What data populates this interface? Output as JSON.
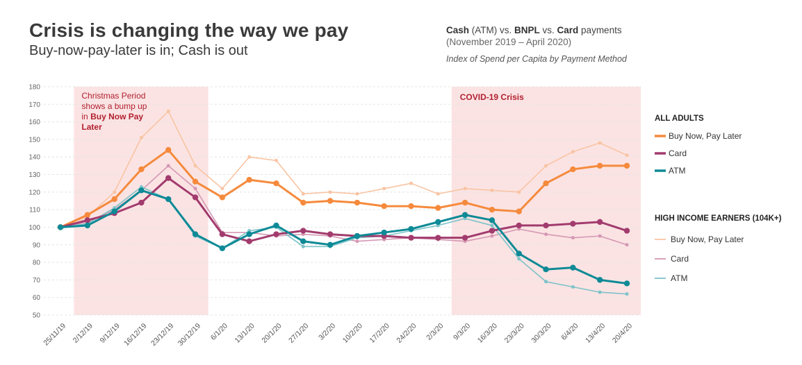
{
  "header": {
    "title": "Crisis is changing the way we pay",
    "subtitle": "Buy-now-pay-later is in; Cash is out",
    "methods": {
      "cash": "Cash",
      "cash_suffix": " (ATM) vs. ",
      "bnpl": "BNPL",
      "bnpl_suffix": " vs. ",
      "card": "Card",
      "card_suffix": " payments"
    },
    "period": "(November 2019 – April 2020)",
    "index_note": "Index of Spend per Capita by Payment Method"
  },
  "chart_data": {
    "type": "line",
    "x": [
      "25/11/19",
      "2/12/19",
      "9/12/19",
      "16/12/19",
      "23/12/19",
      "30/12/19",
      "6/1/20",
      "13/1/20",
      "20/1/20",
      "27/1/20",
      "3/2/20",
      "10/2/20",
      "17/2/20",
      "24/2/20",
      "2/3/20",
      "9/3/20",
      "16/3/20",
      "23/3/20",
      "30/3/20",
      "6/4/20",
      "13/4/20",
      "20/4/20"
    ],
    "ylim": [
      50,
      180
    ],
    "yticks": [
      50,
      60,
      70,
      80,
      90,
      100,
      110,
      120,
      130,
      140,
      150,
      160,
      170,
      180
    ],
    "grid": true,
    "groups": [
      {
        "name": "ALL ADULTS",
        "series": [
          {
            "name": "Buy Now, Pay Later",
            "color": "#f58a3c",
            "values": [
              100,
              107,
              116,
              133,
              144,
              126,
              117,
              127,
              125,
              114,
              115,
              114,
              112,
              112,
              111,
              114,
              110,
              109,
              125,
              133,
              135,
              135
            ]
          },
          {
            "name": "Card",
            "color": "#a23b6e",
            "values": [
              100,
              104,
              108,
              114,
              128,
              117,
              96,
              92,
              96,
              98,
              96,
              95,
              95,
              94,
              94,
              94,
              98,
              101,
              101,
              102,
              103,
              98
            ]
          },
          {
            "name": "ATM",
            "color": "#0d8a96",
            "values": [
              100,
              101,
              109,
              121,
              116,
              96,
              88,
              96,
              101,
              92,
              90,
              95,
              97,
              99,
              103,
              107,
              104,
              85,
              76,
              77,
              70,
              68
            ]
          }
        ]
      },
      {
        "name": "HIGH INCOME EARNERS (104K+)",
        "series": [
          {
            "name": "Buy Now, Pay Later",
            "color": "#f9c4a3",
            "values": [
              100,
              106,
              120,
              151,
              166,
              135,
              122,
              140,
              138,
              119,
              120,
              119,
              122,
              125,
              119,
              122,
              121,
              120,
              135,
              143,
              148,
              141
            ]
          },
          {
            "name": "Card",
            "color": "#d597b3",
            "values": [
              100,
              103,
              110,
              121,
              135,
              122,
              97,
              97,
              95,
              96,
              95,
              92,
              93,
              94,
              93,
              92,
              95,
              99,
              96,
              94,
              95,
              90
            ]
          },
          {
            "name": "ATM",
            "color": "#7cc3c9",
            "values": [
              100,
              102,
              111,
              123,
              116,
              95,
              88,
              98,
              100,
              89,
              89,
              94,
              95,
              98,
              101,
              105,
              101,
              82,
              69,
              66,
              63,
              62
            ]
          }
        ]
      }
    ],
    "shaded_periods": [
      {
        "label_parts": [
          "Christmas Period",
          "shows a bump up",
          "in ",
          "Buy Now Pay",
          "Later"
        ],
        "from": "2/12/19",
        "to": "30/12/19"
      },
      {
        "label": "COVID-19 Crisis",
        "from": "9/3/20",
        "to": "20/4/20"
      }
    ],
    "shade_color": "#fbe3e3",
    "annotation_color": "#b0202f"
  }
}
